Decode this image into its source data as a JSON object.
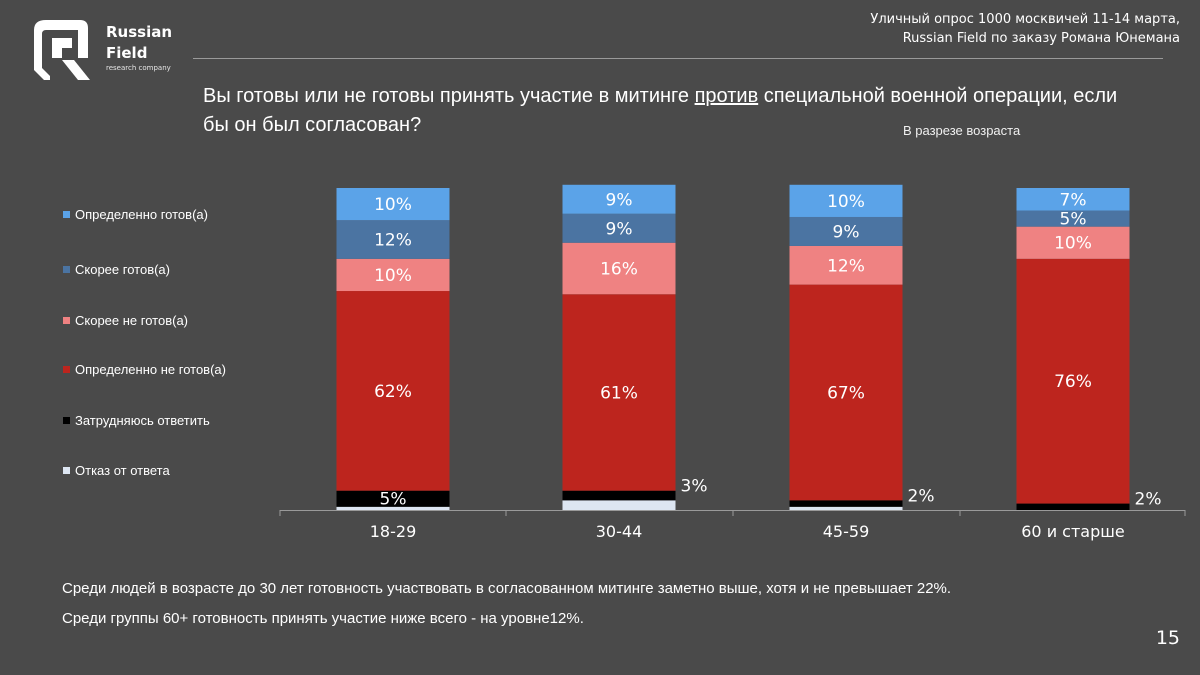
{
  "brand": {
    "line1": "Russian",
    "line2": "Field",
    "sub": "research company"
  },
  "source": {
    "line1": "Уличный опрос 1000 москвичей 11-14 марта,",
    "line2": "Russian Field по заказу Романа Юнемана"
  },
  "question": {
    "part1": "Вы готовы или не готовы принять участие в митинге ",
    "underlined": "против",
    "part2": " специальной военной операции, если бы он был согласован?"
  },
  "subtitle": "В разрезе возраста",
  "notes": [
    "Среди людей в возрасте до 30 лет готовность участвовать в согласованном митинге заметно выше, хотя и не превышает 22%.",
    "Среди группы 60+ готовность принять участие ниже всего - на уровне12%."
  ],
  "page_number": "15",
  "chart_data": {
    "type": "bar",
    "stacked": true,
    "categories": [
      "18-29",
      "30-44",
      "45-59",
      "60 и старше"
    ],
    "series": [
      {
        "name": "Отказ от ответа",
        "color": "#dde6f2",
        "values": [
          1,
          3,
          1,
          0
        ]
      },
      {
        "name": "Затрудняюсь ответить",
        "color": "#000000",
        "values": [
          5,
          3,
          2,
          2
        ]
      },
      {
        "name": "Определенно не готов(а)",
        "color": "#bd251e",
        "values": [
          62,
          61,
          67,
          76
        ]
      },
      {
        "name": "Скорее не готов(а)",
        "color": "#ef8282",
        "values": [
          10,
          16,
          12,
          10
        ]
      },
      {
        "name": "Скорее готов(а)",
        "color": "#4b74a2",
        "values": [
          12,
          9,
          9,
          5
        ]
      },
      {
        "name": "Определенно готов(а)",
        "color": "#5ba3e8",
        "values": [
          10,
          9,
          10,
          7
        ]
      }
    ],
    "data_labels": [
      {
        "series": "Затрудняюсь ответить",
        "labels": [
          "5%",
          "3%",
          "2%",
          "2%"
        ],
        "position": [
          "inside",
          "outside",
          "outside",
          "outside"
        ]
      },
      {
        "series": "Определенно не готов(а)",
        "labels": [
          "62%",
          "61%",
          "67%",
          "76%"
        ]
      },
      {
        "series": "Скорее не готов(а)",
        "labels": [
          "10%",
          "16%",
          "12%",
          "10%"
        ]
      },
      {
        "series": "Скорее готов(а)",
        "labels": [
          "12%",
          "9%",
          "9%",
          "5%"
        ]
      },
      {
        "series": "Определенно готов(а)",
        "labels": [
          "10%",
          "9%",
          "10%",
          "7%"
        ]
      }
    ],
    "legend": {
      "placement": "left",
      "order": [
        "Определенно готов(а)",
        "Скорее готов(а)",
        "Скорее не готов(а)",
        "Определенно не готов(а)",
        "Затрудняюсь ответить",
        "Отказ от ответа"
      ]
    },
    "grid": false
  }
}
